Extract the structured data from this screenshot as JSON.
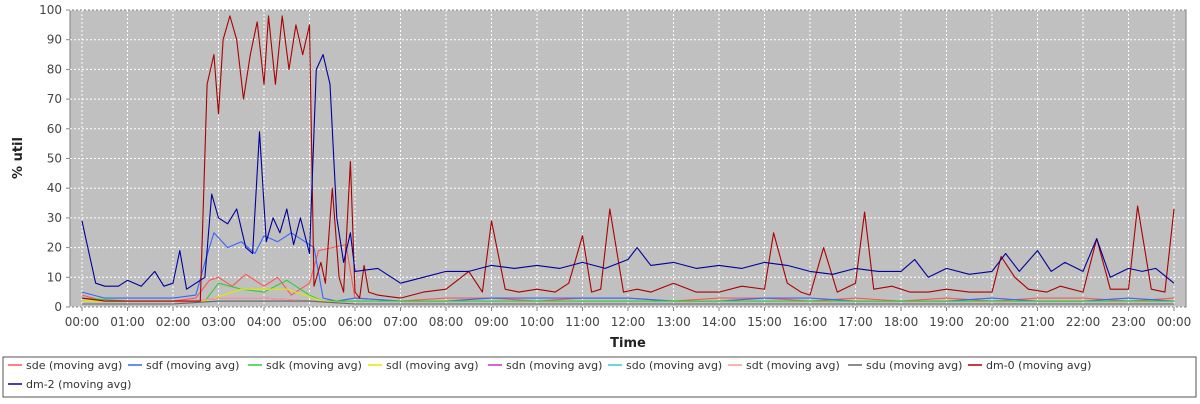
{
  "chart_data": {
    "type": "line",
    "title": "",
    "xlabel": "Time",
    "ylabel": "% util",
    "ylim": [
      0,
      100
    ],
    "xlim": [
      0,
      24
    ],
    "x_tick_labels": [
      "00:00",
      "01:00",
      "02:00",
      "03:00",
      "04:00",
      "05:00",
      "06:00",
      "07:00",
      "08:00",
      "09:00",
      "10:00",
      "11:00",
      "12:00",
      "13:00",
      "14:00",
      "15:00",
      "16:00",
      "17:00",
      "18:00",
      "19:00",
      "20:00",
      "21:00",
      "22:00",
      "23:00",
      "00:00"
    ],
    "y_tick_labels": [
      "0",
      "10",
      "20",
      "30",
      "40",
      "50",
      "60",
      "70",
      "80",
      "90",
      "100"
    ],
    "grid": true,
    "legend_position": "bottom",
    "series": [
      {
        "name": "sde (moving avg)",
        "color": "#ff5555",
        "x": [
          0.0,
          0.5,
          1.0,
          1.5,
          2.0,
          2.5,
          2.8,
          3.0,
          3.3,
          3.6,
          4.0,
          4.3,
          4.6,
          5.0,
          5.2,
          5.5,
          5.8,
          6.0,
          7.0,
          8.0,
          9.0,
          10.0,
          11.0,
          12.0,
          13.0,
          14.0,
          15.0,
          16.0,
          17.0,
          18.0,
          19.0,
          20.0,
          21.0,
          22.0,
          23.0,
          24.0
        ],
        "y": [
          4,
          2,
          2,
          2,
          2,
          3,
          9,
          10,
          7,
          11,
          7,
          10,
          4,
          8,
          19,
          20,
          21,
          3,
          2,
          3,
          3,
          2,
          3,
          3,
          2,
          3,
          3,
          2,
          3,
          2,
          3,
          2,
          3,
          3,
          2,
          3
        ]
      },
      {
        "name": "sdf (moving avg)",
        "color": "#3366ff",
        "x": [
          0.0,
          0.5,
          1.0,
          1.5,
          2.0,
          2.5,
          2.7,
          2.9,
          3.2,
          3.5,
          3.8,
          4.0,
          4.3,
          4.6,
          4.9,
          5.1,
          5.3,
          5.6,
          6.0,
          7.0,
          8.0,
          9.0,
          10.0,
          11.0,
          12.0,
          13.0,
          14.0,
          15.0,
          16.0,
          17.0,
          18.0,
          19.0,
          20.0,
          21.0,
          22.0,
          23.0,
          24.0
        ],
        "y": [
          5,
          3,
          3,
          3,
          3,
          4,
          15,
          25,
          20,
          22,
          18,
          24,
          22,
          25,
          22,
          20,
          3,
          2,
          3,
          2,
          2,
          3,
          3,
          3,
          3,
          2,
          2,
          3,
          3,
          2,
          2,
          2,
          3,
          2,
          2,
          3,
          2
        ]
      },
      {
        "name": "sdk (moving avg)",
        "color": "#33cc33",
        "x": [
          0.0,
          1.0,
          2.0,
          2.7,
          3.0,
          3.5,
          4.0,
          4.5,
          5.0,
          5.3,
          6.0,
          8.0,
          10.0,
          12.0,
          14.0,
          16.0,
          18.0,
          20.0,
          22.0,
          24.0
        ],
        "y": [
          3,
          2,
          2,
          2,
          8,
          6,
          5,
          9,
          4,
          2,
          2,
          2,
          2,
          2,
          2,
          2,
          2,
          2,
          2,
          2
        ]
      },
      {
        "name": "sdl (moving avg)",
        "color": "#e6e600",
        "x": [
          0.0,
          2.0,
          2.7,
          3.5,
          4.5,
          5.3,
          6.0,
          10.0,
          14.0,
          18.0,
          22.0,
          24.0
        ],
        "y": [
          2,
          2,
          2,
          6,
          6,
          2,
          1,
          1,
          1,
          1,
          1,
          1
        ]
      },
      {
        "name": "sdn (moving avg)",
        "color": "#cc33cc",
        "x": [
          0.0,
          2.0,
          3.0,
          4.0,
          5.0,
          6.0,
          9.0,
          12.0,
          15.0,
          18.0,
          21.0,
          24.0
        ],
        "y": [
          1,
          1,
          3,
          3,
          2,
          1,
          1,
          1,
          1,
          1,
          1,
          1
        ]
      },
      {
        "name": "sdo (moving avg)",
        "color": "#33cccc",
        "x": [
          0.0,
          2.0,
          3.0,
          4.0,
          5.0,
          6.0,
          9.0,
          12.0,
          15.0,
          18.0,
          21.0,
          24.0
        ],
        "y": [
          1,
          1,
          2,
          2,
          2,
          1,
          1,
          1,
          1,
          1,
          1,
          1
        ]
      },
      {
        "name": "sdt (moving avg)",
        "color": "#ff9999",
        "x": [
          0.0,
          2.0,
          3.0,
          4.0,
          5.0,
          6.0,
          9.0,
          12.0,
          15.0,
          18.0,
          21.0,
          24.0
        ],
        "y": [
          1,
          1,
          3,
          3,
          2,
          1,
          1,
          1,
          1,
          1,
          1,
          1
        ]
      },
      {
        "name": "sdu (moving avg)",
        "color": "#666666",
        "x": [
          0.0,
          2.0,
          3.0,
          4.0,
          5.0,
          6.0,
          9.0,
          12.0,
          15.0,
          18.0,
          21.0,
          24.0
        ],
        "y": [
          1,
          1,
          2,
          2,
          2,
          1,
          1,
          1,
          1,
          1,
          1,
          1
        ]
      },
      {
        "name": "dm-0 (moving avg)",
        "color": "#aa0000",
        "x": [
          0.0,
          0.5,
          1.0,
          1.5,
          2.0,
          2.4,
          2.6,
          2.75,
          2.9,
          3.0,
          3.1,
          3.25,
          3.4,
          3.55,
          3.7,
          3.85,
          4.0,
          4.1,
          4.25,
          4.4,
          4.55,
          4.7,
          4.85,
          5.0,
          5.1,
          5.25,
          5.35,
          5.5,
          5.65,
          5.75,
          5.9,
          6.0,
          6.1,
          6.2,
          6.3,
          6.5,
          7.0,
          7.5,
          8.0,
          8.5,
          8.8,
          9.0,
          9.3,
          9.6,
          10.0,
          10.4,
          10.7,
          11.0,
          11.2,
          11.4,
          11.6,
          11.9,
          12.2,
          12.5,
          13.0,
          13.5,
          14.0,
          14.5,
          15.0,
          15.2,
          15.5,
          15.8,
          16.0,
          16.3,
          16.6,
          17.0,
          17.2,
          17.4,
          17.8,
          18.2,
          18.6,
          19.0,
          19.5,
          20.0,
          20.2,
          20.5,
          20.8,
          21.2,
          21.5,
          22.0,
          22.3,
          22.6,
          23.0,
          23.2,
          23.5,
          23.8,
          24.0
        ],
        "y": [
          3,
          2,
          2,
          2,
          2,
          2,
          2,
          75,
          85,
          65,
          90,
          98,
          90,
          70,
          85,
          96,
          75,
          98,
          75,
          98,
          80,
          95,
          85,
          95,
          7,
          15,
          8,
          40,
          10,
          5,
          49,
          5,
          3,
          14,
          5,
          4,
          3,
          5,
          6,
          12,
          5,
          29,
          6,
          5,
          6,
          5,
          8,
          24,
          5,
          6,
          33,
          5,
          6,
          5,
          8,
          5,
          5,
          7,
          6,
          25,
          8,
          5,
          4,
          20,
          5,
          8,
          32,
          6,
          7,
          5,
          5,
          6,
          5,
          5,
          17,
          10,
          6,
          5,
          7,
          5,
          23,
          6,
          6,
          34,
          6,
          5,
          33
        ]
      },
      {
        "name": "dm-2 (moving avg)",
        "color": "#000099",
        "x": [
          0.0,
          0.1,
          0.3,
          0.5,
          0.8,
          1.0,
          1.3,
          1.6,
          1.8,
          2.0,
          2.15,
          2.3,
          2.5,
          2.7,
          2.85,
          3.0,
          3.2,
          3.4,
          3.6,
          3.75,
          3.9,
          4.05,
          4.2,
          4.35,
          4.5,
          4.65,
          4.8,
          5.0,
          5.15,
          5.3,
          5.45,
          5.6,
          5.75,
          5.9,
          6.0,
          6.5,
          7.0,
          7.5,
          8.0,
          8.5,
          9.0,
          9.5,
          10.0,
          10.5,
          11.0,
          11.5,
          12.0,
          12.2,
          12.5,
          13.0,
          13.5,
          14.0,
          14.5,
          15.0,
          15.5,
          16.0,
          16.5,
          17.0,
          17.5,
          18.0,
          18.3,
          18.6,
          19.0,
          19.5,
          20.0,
          20.3,
          20.6,
          21.0,
          21.3,
          21.6,
          22.0,
          22.3,
          22.6,
          23.0,
          23.3,
          23.6,
          24.0
        ],
        "y": [
          29,
          22,
          8,
          7,
          7,
          9,
          7,
          12,
          7,
          8,
          19,
          6,
          8,
          10,
          38,
          30,
          28,
          33,
          20,
          18,
          59,
          22,
          30,
          25,
          33,
          21,
          30,
          18,
          80,
          85,
          75,
          30,
          15,
          25,
          12,
          13,
          8,
          10,
          12,
          12,
          14,
          13,
          14,
          13,
          15,
          13,
          16,
          20,
          14,
          15,
          13,
          14,
          13,
          15,
          14,
          12,
          11,
          13,
          12,
          12,
          16,
          10,
          13,
          11,
          12,
          18,
          12,
          19,
          12,
          15,
          12,
          23,
          10,
          13,
          12,
          13,
          8
        ]
      }
    ]
  }
}
